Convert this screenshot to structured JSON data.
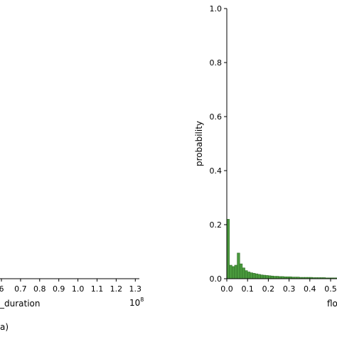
{
  "chart_data": [
    {
      "type": "histogram",
      "xlabel": "_duration",
      "ylabel": "",
      "x_ticks": [
        "6",
        "0.7",
        "0.8",
        "0.9",
        "1.0",
        "1.1",
        "1.2",
        "1.3"
      ],
      "x_offset_label": "10",
      "x_offset_exponent": "8",
      "caption": "a)",
      "grid": false
    },
    {
      "type": "bar",
      "xlabel": "flo",
      "ylabel": "probability",
      "xlim": [
        0.0,
        0.6
      ],
      "ylim": [
        0.0,
        1.0
      ],
      "x_ticks": [
        "0.0",
        "0.1",
        "0.2",
        "0.3",
        "0.4",
        "0.5"
      ],
      "y_ticks": [
        "0.0",
        "0.2",
        "0.4",
        "0.6",
        "0.8",
        "1.0"
      ],
      "bin_width": 0.0125,
      "bins_start": [
        0.0,
        0.0125,
        0.025,
        0.0375,
        0.05,
        0.0625,
        0.075,
        0.0875,
        0.1,
        0.1125,
        0.125,
        0.1375,
        0.15,
        0.1625,
        0.175,
        0.1875,
        0.2,
        0.2125,
        0.225,
        0.2375,
        0.25,
        0.2625,
        0.275,
        0.2875,
        0.3,
        0.3125,
        0.325,
        0.3375,
        0.35,
        0.3625,
        0.375,
        0.3875,
        0.4,
        0.4125,
        0.425,
        0.4375,
        0.45,
        0.4625,
        0.475,
        0.4875,
        0.5,
        0.5125,
        0.525,
        0.5375,
        0.55,
        0.5625,
        0.575,
        0.5875
      ],
      "values": [
        0.22,
        0.05,
        0.045,
        0.05,
        0.095,
        0.055,
        0.04,
        0.03,
        0.025,
        0.022,
        0.02,
        0.018,
        0.016,
        0.014,
        0.013,
        0.012,
        0.011,
        0.01,
        0.009,
        0.009,
        0.008,
        0.008,
        0.007,
        0.007,
        0.007,
        0.006,
        0.006,
        0.006,
        0.005,
        0.005,
        0.005,
        0.005,
        0.005,
        0.004,
        0.004,
        0.004,
        0.004,
        0.004,
        0.003,
        0.003,
        0.003,
        0.003,
        0.003,
        0.003,
        0.003,
        0.002,
        0.002,
        0.002
      ],
      "bar_color": "#4a9a3d",
      "edge_color": "#2f6b26",
      "grid": false
    }
  ]
}
